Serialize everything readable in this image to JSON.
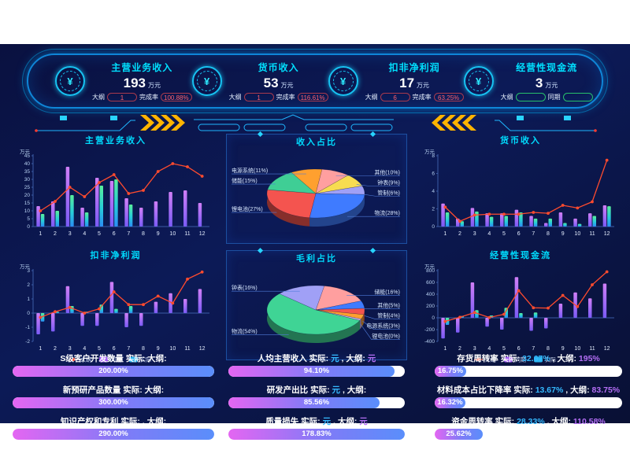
{
  "currency_symbol": "¥",
  "header": {
    "cards": [
      {
        "title": "主营业务收入",
        "value": "193",
        "unit": "万元",
        "meta1_label": "大纲",
        "meta1_value": "1",
        "meta2_label": "完成率",
        "meta2_value": "100.88%"
      },
      {
        "title": "货币收入",
        "value": "53",
        "unit": "万元",
        "meta1_label": "大纲",
        "meta1_value": "1",
        "meta2_label": "完成率",
        "meta2_value": "116.61%"
      },
      {
        "title": "扣非净利润",
        "value": "17",
        "unit": "万元",
        "meta1_label": "大纲",
        "meta1_value": "6",
        "meta2_label": "完成率",
        "meta2_value": "63.25%"
      },
      {
        "title": "经营性现金流",
        "value": "3",
        "unit": "万元",
        "meta1_label": "大纲",
        "meta1_value": "",
        "meta2_label": "同期",
        "meta2_value": ""
      }
    ]
  },
  "colors": {
    "accent_cyan": "#00dcff",
    "line_red": "#ff4b2e",
    "bar_purple": "#a45ef5",
    "bar_blue": "#2ab5f0",
    "pill_red": "#ff5f6b",
    "pill_green": "#59e3a0",
    "fill_start": "#e466f2",
    "fill_end": "#5a8efb"
  },
  "chart_data": [
    {
      "id": "main-income",
      "column": "left",
      "type": "bar",
      "title": "主营业务收入",
      "ylabel": "万元",
      "categories": [
        1,
        2,
        3,
        4,
        5,
        6,
        7,
        8,
        9,
        10,
        11,
        12
      ],
      "ylim": [
        0,
        45
      ],
      "yticks": [
        0,
        5,
        10,
        15,
        20,
        25,
        30,
        35,
        40,
        45
      ],
      "legend": false,
      "series": [
        {
          "name": "同期",
          "type": "bar",
          "values": [
            13,
            16,
            38,
            12,
            31,
            29,
            18,
            12,
            16,
            22,
            23,
            15
          ]
        },
        {
          "name": "实际",
          "type": "bar",
          "values": [
            8,
            10,
            20,
            9,
            26,
            30,
            14,
            0,
            0,
            0,
            0,
            0
          ]
        },
        {
          "name": "大纲",
          "type": "line",
          "values": [
            10,
            16,
            25,
            19,
            28,
            33,
            21,
            23,
            35,
            40,
            38,
            32
          ]
        }
      ]
    },
    {
      "id": "net-profit",
      "column": "left",
      "type": "bar",
      "title": "扣非净利润",
      "ylabel": "万元",
      "categories": [
        1,
        2,
        3,
        4,
        5,
        6,
        7,
        8,
        9,
        10,
        11,
        12
      ],
      "ylim": [
        -2,
        3
      ],
      "yticks": [
        -2,
        -1,
        0,
        1,
        2,
        3
      ],
      "legend": true,
      "series": [
        {
          "name": "同期",
          "type": "bar",
          "values": [
            -1.5,
            -1.3,
            1.9,
            -0.9,
            -0.9,
            2.2,
            -1.0,
            -0.9,
            0.8,
            1.4,
            1.0,
            1.7
          ]
        },
        {
          "name": "实际",
          "type": "bar",
          "values": [
            -0.6,
            0.1,
            0.5,
            0.1,
            0.6,
            0.3,
            0.5,
            0,
            0,
            0,
            0,
            0
          ]
        },
        {
          "name": "大纲",
          "type": "line",
          "values": [
            -0.3,
            0.1,
            0.4,
            0.0,
            0.3,
            1.5,
            0.6,
            0.6,
            1.2,
            0.7,
            2.4,
            2.9
          ]
        }
      ]
    },
    {
      "id": "income-pie",
      "column": "middle",
      "type": "pie",
      "title": "收入占比",
      "start": -120,
      "slices": [
        {
          "label": "电源系统",
          "pct": 11,
          "color": "#ffa02f"
        },
        {
          "label": "其他",
          "pct": 10,
          "color": "#ff9f9f"
        },
        {
          "label": "钟表",
          "pct": 9,
          "color": "#f7dc50"
        },
        {
          "label": "管制",
          "pct": 6,
          "color": "#a0a0f6"
        },
        {
          "label": "物流",
          "pct": 28,
          "color": "#3f7bff"
        },
        {
          "label": "锂电池",
          "pct": 27,
          "color": "#f4544f"
        },
        {
          "label": "储能",
          "pct": 15,
          "color": "#3fce95"
        }
      ]
    },
    {
      "id": "gross-pie",
      "column": "middle",
      "type": "pie",
      "title": "毛利占比",
      "start": -80,
      "slices": [
        {
          "label": "储能",
          "pct": 16,
          "color": "#ff9f9f"
        },
        {
          "label": "其他",
          "pct": 5,
          "color": "#3f7bff"
        },
        {
          "label": "管制",
          "pct": 4,
          "color": "#f4544f"
        },
        {
          "label": "电源系统",
          "pct": 3,
          "color": "#ffa02f"
        },
        {
          "label": "锂电池",
          "pct": 0,
          "w": 1,
          "color": "#c9b2f0"
        },
        {
          "label": "物流",
          "pct": 54,
          "color": "#3fd495"
        },
        {
          "label": "钟表",
          "pct": 16,
          "color": "#a0a0f6"
        }
      ]
    },
    {
      "id": "currency-income",
      "column": "right",
      "type": "bar",
      "title": "货币收入",
      "ylabel": "万元",
      "categories": [
        1,
        2,
        3,
        4,
        5,
        6,
        7,
        8,
        9,
        10,
        11,
        12
      ],
      "ylim": [
        0,
        8
      ],
      "yticks": [
        0,
        2,
        4,
        6,
        8
      ],
      "legend": false,
      "series": [
        {
          "name": "同期",
          "type": "bar",
          "values": [
            2.6,
            0.9,
            2.1,
            1.5,
            1.5,
            1.9,
            1.2,
            0.4,
            1.6,
            0.9,
            1.5,
            2.4
          ]
        },
        {
          "name": "实际",
          "type": "bar",
          "values": [
            1.6,
            0.6,
            1.7,
            1.1,
            1.2,
            1.6,
            0.9,
            0.9,
            0.4,
            0.3,
            1.2,
            2.3
          ]
        },
        {
          "name": "大纲",
          "type": "line",
          "values": [
            2.2,
            0.6,
            1.3,
            1.4,
            1.4,
            1.4,
            1.6,
            1.5,
            2.4,
            2.1,
            2.8,
            7.5
          ]
        }
      ]
    },
    {
      "id": "cash-flow",
      "column": "right",
      "type": "bar",
      "title": "经营性现金流",
      "ylabel": "万元",
      "categories": [
        1,
        2,
        3,
        4,
        5,
        6,
        7,
        8,
        9,
        10,
        11,
        12
      ],
      "ylim": [
        -400,
        800
      ],
      "yticks": [
        -400,
        -200,
        0,
        200,
        400,
        600,
        800
      ],
      "legend": true,
      "series": [
        {
          "name": "同期",
          "type": "bar",
          "values": [
            -350,
            -250,
            600,
            -150,
            -200,
            690,
            -220,
            -180,
            240,
            430,
            330,
            580
          ]
        },
        {
          "name": "实际",
          "type": "bar",
          "values": [
            -120,
            30,
            130,
            40,
            170,
            80,
            90,
            0,
            0,
            0,
            0,
            0
          ]
        },
        {
          "name": "大纲",
          "type": "line",
          "values": [
            -60,
            10,
            90,
            5,
            60,
            460,
            170,
            165,
            380,
            190,
            560,
            780
          ]
        }
      ]
    }
  ],
  "progress": {
    "actual_label": "实际:",
    "target_label": "大纲:",
    "columns": [
      [
        {
          "title": "S级客户开发数量",
          "actual": "",
          "sep": "",
          "target": "",
          "pct_text": "200.00%",
          "pct": 200
        },
        {
          "title": "新预研产品数量",
          "actual": "",
          "sep": "",
          "target": "",
          "pct_text": "300.00%",
          "pct": 300
        },
        {
          "title": "知识产权和专利",
          "actual": "",
          "sep": ",",
          "target": "",
          "pct_text": "290.00%",
          "pct": 290
        }
      ],
      [
        {
          "title": "人均主营收入",
          "actual": "元",
          "sep": ",",
          "target": "元",
          "pct_text": "94.10%",
          "pct": 94.1
        },
        {
          "title": "研发产出比",
          "actual": "元",
          "sep": ",",
          "target": "",
          "pct_text": "85.56%",
          "pct": 85.56
        },
        {
          "title": "质量损失",
          "actual": "元",
          "sep": ",",
          "target": "元",
          "pct_text": "178.83%",
          "pct": 178.83
        }
      ],
      [
        {
          "title": "存货周转率",
          "actual": "32.67%",
          "sep": ",",
          "target": "195%",
          "pct_text": "16.75%",
          "pct": 16.75
        },
        {
          "title": "材料成本占比下降率",
          "actual": "13.67%",
          "sep": ",",
          "target": "83.75%",
          "pct_text": "16.32%",
          "pct": 16.32
        },
        {
          "title": "资金周转率",
          "actual": "28.33%",
          "sep": ",",
          "target": "110.58%",
          "pct_text": "25.62%",
          "pct": 25.62
        }
      ]
    ]
  }
}
